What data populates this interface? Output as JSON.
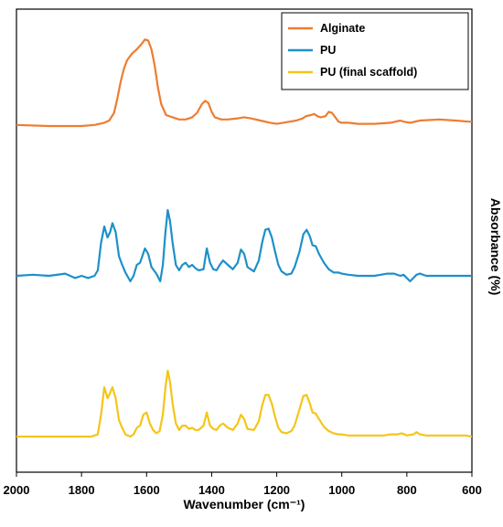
{
  "chart_data": {
    "type": "line",
    "xlabel": "Wavenumber (cm⁻¹)",
    "ylabel": "Absorbance (%)",
    "xlim": [
      2000,
      600
    ],
    "x_reversed": true,
    "x_ticks": [
      2000,
      1800,
      1600,
      1400,
      1200,
      1000,
      800,
      600
    ],
    "y_ticks_shown": false,
    "grid": false,
    "legend_position": "top-right",
    "traces_vertically_offset": true,
    "series": [
      {
        "name": "Alginate",
        "color": "#ed7d31",
        "offset": 2.0,
        "points": [
          [
            2000,
            0.01
          ],
          [
            1900,
            0.0
          ],
          [
            1800,
            0.0
          ],
          [
            1760,
            0.01
          ],
          [
            1730,
            0.03
          ],
          [
            1715,
            0.05
          ],
          [
            1700,
            0.12
          ],
          [
            1690,
            0.25
          ],
          [
            1680,
            0.4
          ],
          [
            1670,
            0.52
          ],
          [
            1660,
            0.6
          ],
          [
            1645,
            0.66
          ],
          [
            1630,
            0.7
          ],
          [
            1615,
            0.75
          ],
          [
            1605,
            0.79
          ],
          [
            1595,
            0.78
          ],
          [
            1585,
            0.7
          ],
          [
            1575,
            0.55
          ],
          [
            1565,
            0.35
          ],
          [
            1555,
            0.2
          ],
          [
            1540,
            0.1
          ],
          [
            1520,
            0.08
          ],
          [
            1500,
            0.06
          ],
          [
            1480,
            0.06
          ],
          [
            1460,
            0.08
          ],
          [
            1445,
            0.12
          ],
          [
            1430,
            0.2
          ],
          [
            1420,
            0.23
          ],
          [
            1410,
            0.21
          ],
          [
            1400,
            0.13
          ],
          [
            1390,
            0.08
          ],
          [
            1370,
            0.06
          ],
          [
            1350,
            0.06
          ],
          [
            1320,
            0.07
          ],
          [
            1300,
            0.08
          ],
          [
            1280,
            0.07
          ],
          [
            1250,
            0.05
          ],
          [
            1220,
            0.03
          ],
          [
            1200,
            0.02
          ],
          [
            1180,
            0.03
          ],
          [
            1160,
            0.04
          ],
          [
            1140,
            0.05
          ],
          [
            1120,
            0.07
          ],
          [
            1110,
            0.09
          ],
          [
            1095,
            0.1
          ],
          [
            1085,
            0.11
          ],
          [
            1075,
            0.09
          ],
          [
            1065,
            0.08
          ],
          [
            1050,
            0.09
          ],
          [
            1040,
            0.13
          ],
          [
            1030,
            0.12
          ],
          [
            1020,
            0.08
          ],
          [
            1010,
            0.04
          ],
          [
            1000,
            0.03
          ],
          [
            980,
            0.03
          ],
          [
            950,
            0.02
          ],
          [
            900,
            0.02
          ],
          [
            850,
            0.03
          ],
          [
            820,
            0.05
          ],
          [
            810,
            0.04
          ],
          [
            790,
            0.03
          ],
          [
            760,
            0.05
          ],
          [
            700,
            0.06
          ],
          [
            650,
            0.05
          ],
          [
            610,
            0.04
          ],
          [
            600,
            0.04
          ]
        ]
      },
      {
        "name": "PU",
        "color": "#1e90c8",
        "offset": 1.0,
        "points": [
          [
            2000,
            0.0
          ],
          [
            1950,
            0.01
          ],
          [
            1900,
            0.0
          ],
          [
            1850,
            0.02
          ],
          [
            1820,
            -0.02
          ],
          [
            1800,
            0.0
          ],
          [
            1780,
            -0.02
          ],
          [
            1760,
            0.0
          ],
          [
            1750,
            0.05
          ],
          [
            1740,
            0.3
          ],
          [
            1730,
            0.45
          ],
          [
            1720,
            0.35
          ],
          [
            1712,
            0.4
          ],
          [
            1705,
            0.48
          ],
          [
            1695,
            0.4
          ],
          [
            1685,
            0.18
          ],
          [
            1675,
            0.1
          ],
          [
            1665,
            0.03
          ],
          [
            1650,
            -0.05
          ],
          [
            1640,
            0.0
          ],
          [
            1630,
            0.1
          ],
          [
            1620,
            0.12
          ],
          [
            1605,
            0.25
          ],
          [
            1595,
            0.2
          ],
          [
            1585,
            0.08
          ],
          [
            1570,
            0.02
          ],
          [
            1558,
            -0.05
          ],
          [
            1550,
            0.1
          ],
          [
            1542,
            0.4
          ],
          [
            1535,
            0.6
          ],
          [
            1528,
            0.5
          ],
          [
            1520,
            0.3
          ],
          [
            1510,
            0.1
          ],
          [
            1500,
            0.05
          ],
          [
            1490,
            0.1
          ],
          [
            1480,
            0.12
          ],
          [
            1470,
            0.08
          ],
          [
            1460,
            0.1
          ],
          [
            1450,
            0.07
          ],
          [
            1440,
            0.05
          ],
          [
            1425,
            0.06
          ],
          [
            1415,
            0.25
          ],
          [
            1405,
            0.12
          ],
          [
            1395,
            0.06
          ],
          [
            1385,
            0.05
          ],
          [
            1375,
            0.1
          ],
          [
            1365,
            0.14
          ],
          [
            1350,
            0.1
          ],
          [
            1335,
            0.06
          ],
          [
            1320,
            0.12
          ],
          [
            1310,
            0.24
          ],
          [
            1300,
            0.2
          ],
          [
            1290,
            0.08
          ],
          [
            1270,
            0.04
          ],
          [
            1255,
            0.14
          ],
          [
            1245,
            0.3
          ],
          [
            1235,
            0.42
          ],
          [
            1225,
            0.43
          ],
          [
            1215,
            0.35
          ],
          [
            1205,
            0.22
          ],
          [
            1195,
            0.1
          ],
          [
            1185,
            0.04
          ],
          [
            1170,
            0.01
          ],
          [
            1155,
            0.02
          ],
          [
            1145,
            0.08
          ],
          [
            1130,
            0.22
          ],
          [
            1118,
            0.38
          ],
          [
            1108,
            0.42
          ],
          [
            1098,
            0.36
          ],
          [
            1090,
            0.28
          ],
          [
            1080,
            0.27
          ],
          [
            1070,
            0.2
          ],
          [
            1055,
            0.12
          ],
          [
            1040,
            0.06
          ],
          [
            1025,
            0.03
          ],
          [
            1010,
            0.03
          ],
          [
            1000,
            0.02
          ],
          [
            980,
            0.01
          ],
          [
            950,
            0.0
          ],
          [
            920,
            0.0
          ],
          [
            900,
            0.0
          ],
          [
            880,
            0.01
          ],
          [
            860,
            0.02
          ],
          [
            840,
            0.02
          ],
          [
            820,
            0.0
          ],
          [
            810,
            0.01
          ],
          [
            790,
            -0.05
          ],
          [
            780,
            -0.02
          ],
          [
            770,
            0.01
          ],
          [
            760,
            0.02
          ],
          [
            740,
            0.0
          ],
          [
            700,
            0.0
          ],
          [
            650,
            0.0
          ],
          [
            620,
            0.0
          ],
          [
            600,
            0.0
          ]
        ]
      },
      {
        "name": "PU (final scaffold)",
        "color": "#f5c518",
        "offset": 0.0,
        "points": [
          [
            2000,
            0.0
          ],
          [
            1950,
            0.0
          ],
          [
            1900,
            0.0
          ],
          [
            1850,
            0.0
          ],
          [
            1800,
            0.0
          ],
          [
            1770,
            0.0
          ],
          [
            1750,
            0.02
          ],
          [
            1740,
            0.2
          ],
          [
            1730,
            0.45
          ],
          [
            1720,
            0.35
          ],
          [
            1712,
            0.4
          ],
          [
            1705,
            0.45
          ],
          [
            1695,
            0.35
          ],
          [
            1685,
            0.15
          ],
          [
            1675,
            0.08
          ],
          [
            1665,
            0.02
          ],
          [
            1650,
            0.0
          ],
          [
            1640,
            0.02
          ],
          [
            1630,
            0.08
          ],
          [
            1620,
            0.1
          ],
          [
            1610,
            0.2
          ],
          [
            1600,
            0.22
          ],
          [
            1590,
            0.12
          ],
          [
            1580,
            0.06
          ],
          [
            1570,
            0.03
          ],
          [
            1560,
            0.05
          ],
          [
            1550,
            0.2
          ],
          [
            1542,
            0.45
          ],
          [
            1535,
            0.6
          ],
          [
            1528,
            0.5
          ],
          [
            1520,
            0.3
          ],
          [
            1510,
            0.12
          ],
          [
            1500,
            0.06
          ],
          [
            1490,
            0.1
          ],
          [
            1480,
            0.1
          ],
          [
            1470,
            0.07
          ],
          [
            1460,
            0.08
          ],
          [
            1450,
            0.06
          ],
          [
            1440,
            0.06
          ],
          [
            1425,
            0.1
          ],
          [
            1415,
            0.22
          ],
          [
            1405,
            0.1
          ],
          [
            1395,
            0.07
          ],
          [
            1385,
            0.06
          ],
          [
            1375,
            0.1
          ],
          [
            1365,
            0.12
          ],
          [
            1350,
            0.08
          ],
          [
            1335,
            0.06
          ],
          [
            1320,
            0.12
          ],
          [
            1310,
            0.2
          ],
          [
            1300,
            0.16
          ],
          [
            1290,
            0.07
          ],
          [
            1270,
            0.06
          ],
          [
            1255,
            0.14
          ],
          [
            1245,
            0.28
          ],
          [
            1235,
            0.38
          ],
          [
            1225,
            0.38
          ],
          [
            1215,
            0.3
          ],
          [
            1205,
            0.18
          ],
          [
            1195,
            0.08
          ],
          [
            1185,
            0.04
          ],
          [
            1170,
            0.03
          ],
          [
            1155,
            0.05
          ],
          [
            1145,
            0.1
          ],
          [
            1130,
            0.25
          ],
          [
            1118,
            0.37
          ],
          [
            1108,
            0.38
          ],
          [
            1098,
            0.3
          ],
          [
            1090,
            0.22
          ],
          [
            1080,
            0.21
          ],
          [
            1070,
            0.16
          ],
          [
            1055,
            0.09
          ],
          [
            1040,
            0.05
          ],
          [
            1025,
            0.03
          ],
          [
            1010,
            0.02
          ],
          [
            1000,
            0.02
          ],
          [
            980,
            0.01
          ],
          [
            950,
            0.01
          ],
          [
            900,
            0.01
          ],
          [
            870,
            0.01
          ],
          [
            850,
            0.02
          ],
          [
            830,
            0.02
          ],
          [
            815,
            0.03
          ],
          [
            800,
            0.01
          ],
          [
            780,
            0.02
          ],
          [
            770,
            0.04
          ],
          [
            760,
            0.02
          ],
          [
            740,
            0.01
          ],
          [
            700,
            0.01
          ],
          [
            650,
            0.01
          ],
          [
            620,
            0.01
          ],
          [
            600,
            0.0
          ]
        ]
      }
    ]
  }
}
